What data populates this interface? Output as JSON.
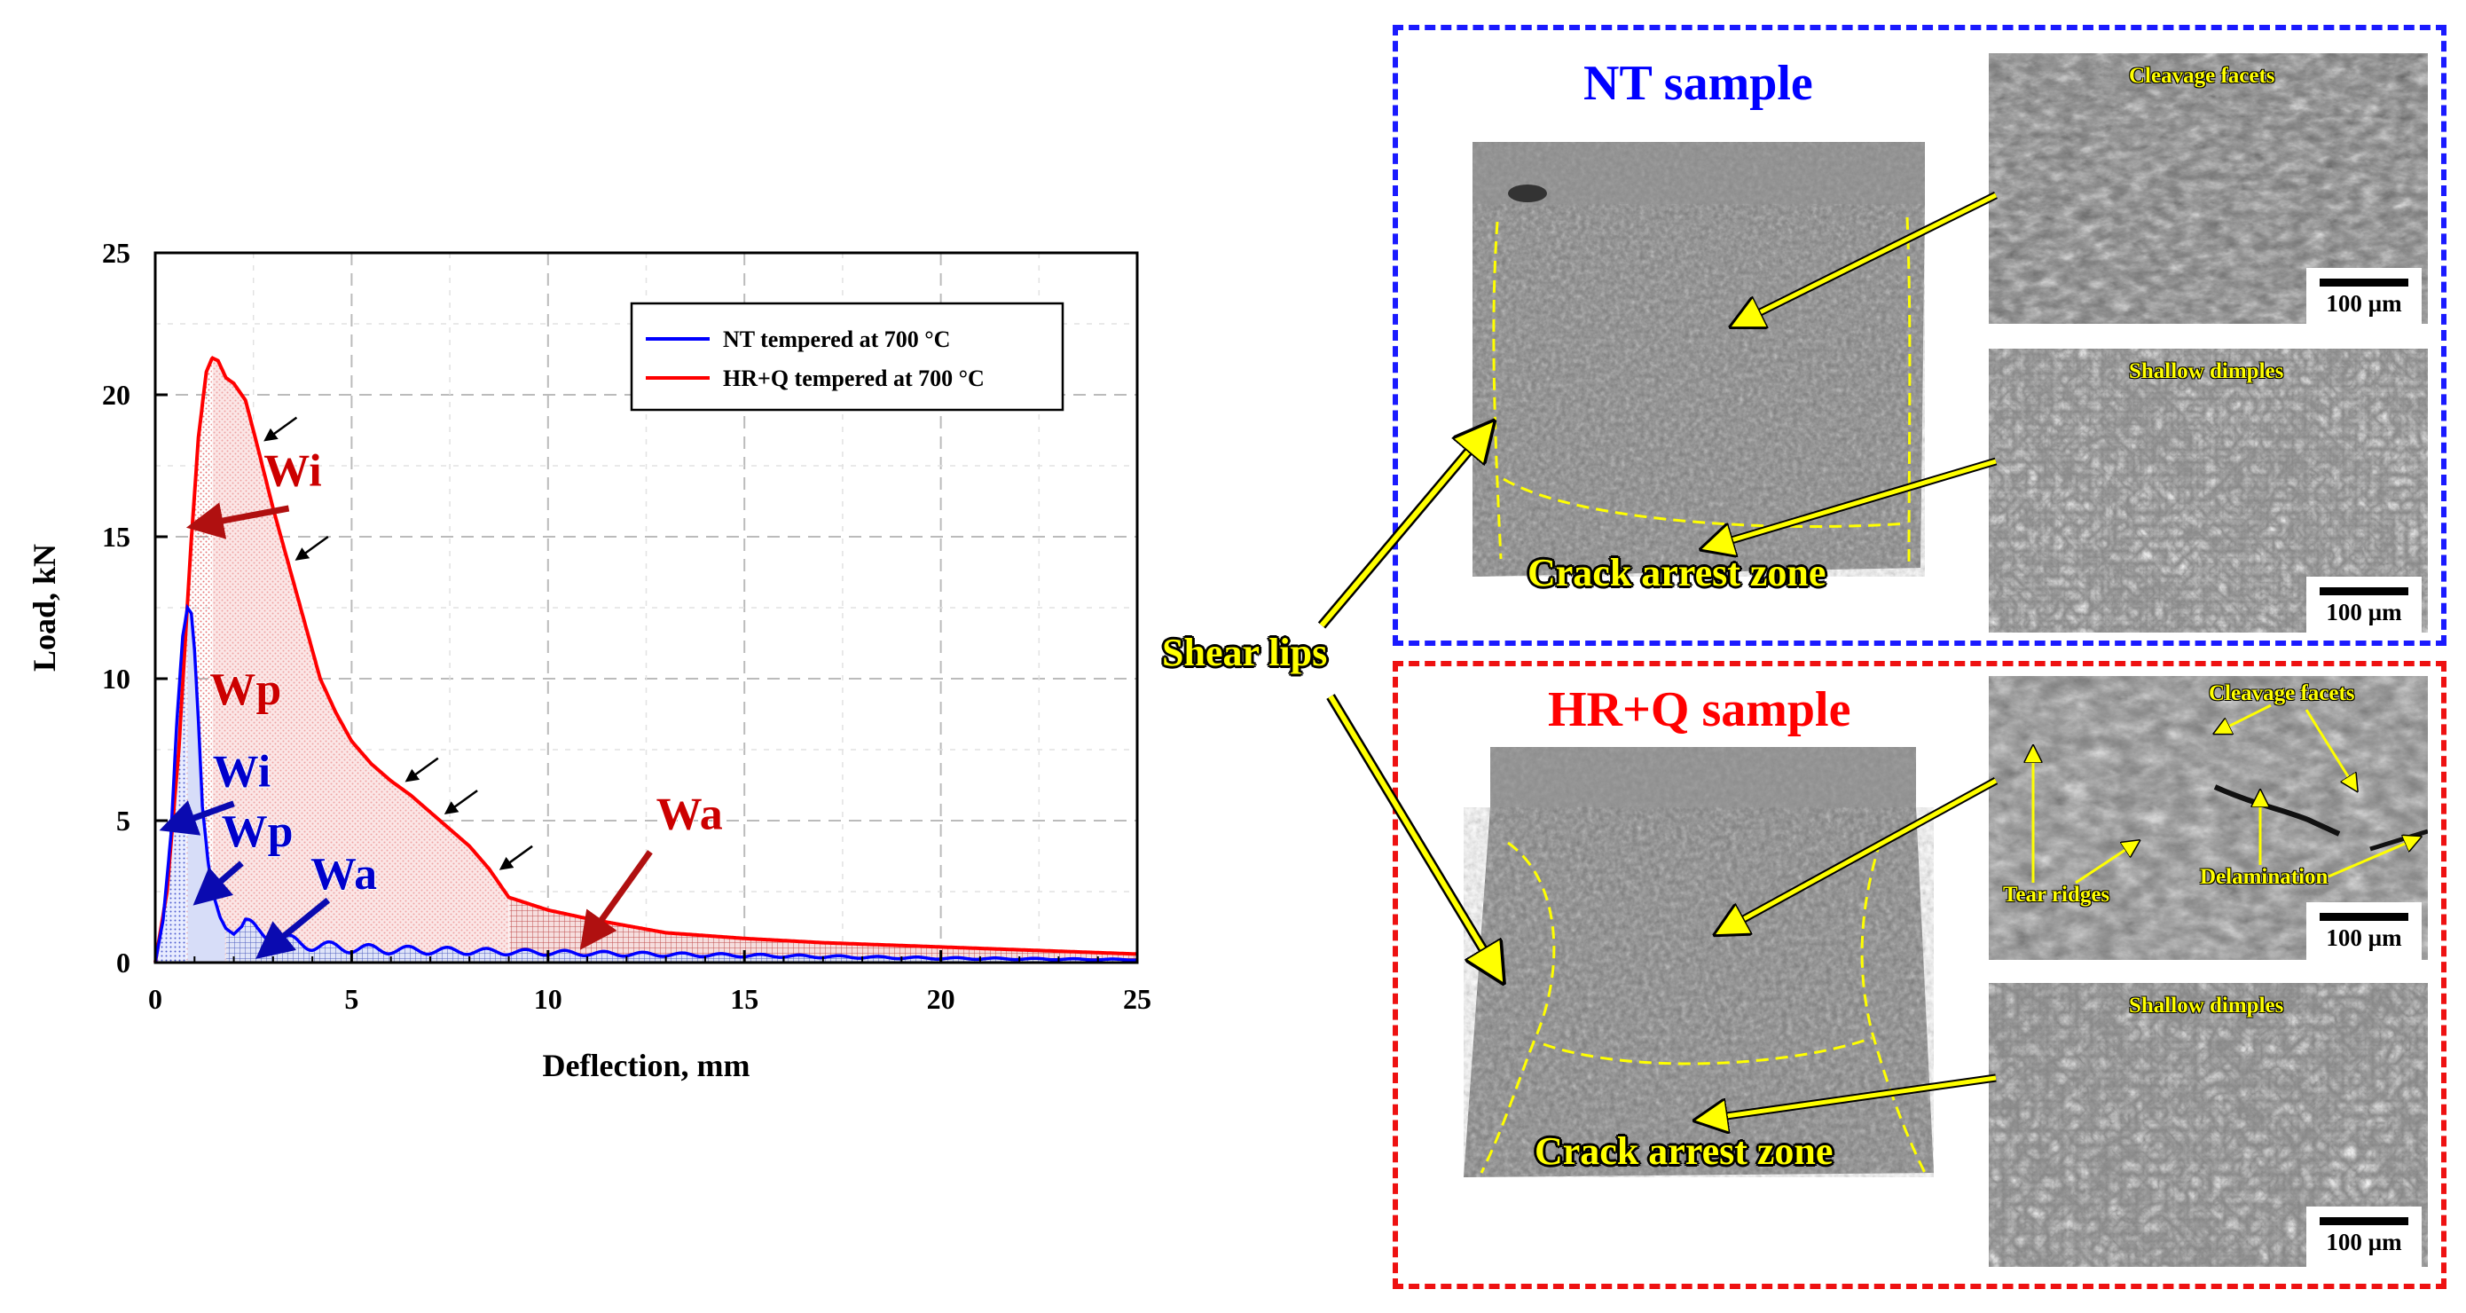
{
  "chart_data": {
    "type": "line",
    "xlabel": "Deflection, mm",
    "ylabel": "Load, kN",
    "xlim": [
      0,
      25
    ],
    "ylim": [
      0,
      25
    ],
    "xticks": [
      "0",
      "5",
      "10",
      "15",
      "20",
      "25"
    ],
    "yticks": [
      "0",
      "5",
      "10",
      "15",
      "20",
      "25"
    ],
    "grid": true,
    "legend_position": "top-right",
    "series": [
      {
        "name": "NT tempered at 700 °C",
        "color": "#0000ff",
        "x": [
          0,
          0.2,
          0.4,
          0.55,
          0.7,
          0.82,
          0.92,
          1.0,
          1.1,
          1.2,
          1.35,
          1.5,
          1.65,
          1.8,
          2.0,
          2.3,
          2.6,
          3.0,
          3.5,
          4.0,
          5.0,
          6.0,
          8.0,
          10.0,
          12.0,
          15.0,
          20.0,
          25.0
        ],
        "y": [
          0,
          1.5,
          4.5,
          8.5,
          11.5,
          12.5,
          12.3,
          11.0,
          8.5,
          5.5,
          3.5,
          2.3,
          1.6,
          1.2,
          1.0,
          1.4,
          1.1,
          0.9,
          0.75,
          0.6,
          0.5,
          0.45,
          0.4,
          0.35,
          0.3,
          0.25,
          0.15,
          0.1
        ]
      },
      {
        "name": "HR+Q tempered at 700 °C",
        "color": "#ff0000",
        "x": [
          0,
          0.3,
          0.6,
          0.9,
          1.1,
          1.3,
          1.45,
          1.6,
          1.8,
          2.0,
          2.3,
          2.6,
          3.0,
          3.4,
          3.8,
          4.2,
          4.6,
          5.0,
          5.5,
          6.0,
          6.5,
          7.0,
          7.5,
          8.0,
          8.5,
          9.0,
          10.0,
          11.0,
          12.0,
          13.0,
          14.0,
          15.0,
          17.0,
          20.0,
          22.0,
          25.0
        ],
        "y": [
          0,
          2.5,
          7.5,
          14.5,
          18.5,
          20.8,
          21.3,
          21.2,
          20.6,
          20.4,
          19.8,
          18.2,
          16.0,
          14.0,
          12.0,
          10.0,
          8.8,
          7.8,
          7.0,
          6.4,
          5.9,
          5.3,
          4.7,
          4.1,
          3.3,
          2.3,
          1.85,
          1.55,
          1.3,
          1.05,
          0.95,
          0.85,
          0.7,
          0.55,
          0.45,
          0.3
        ]
      }
    ],
    "annotations": [
      {
        "text": "Wi",
        "color": "#cc0000",
        "series": "HR+Q tempered at 700 °C"
      },
      {
        "text": "Wp",
        "color": "#cc0000",
        "series": "HR+Q tempered at 700 °C"
      },
      {
        "text": "Wa",
        "color": "#cc0000",
        "series": "HR+Q tempered at 700 °C"
      },
      {
        "text": "Wi",
        "color": "#0000cc",
        "series": "NT tempered at 700 °C"
      },
      {
        "text": "Wp",
        "color": "#0000cc",
        "series": "NT tempered at 700 °C"
      },
      {
        "text": "Wa",
        "color": "#0000cc",
        "series": "NT tempered at 700 °C"
      }
    ],
    "hrq_region_bounds_mm": [
      1.45,
      9.0
    ],
    "nt_region_bounds_mm": [
      0.82,
      1.8
    ],
    "pop_in_arrows_at_mm": [
      2.6,
      3.4,
      6.2,
      7.2,
      8.6
    ]
  },
  "nt_panel": {
    "title": "NT sample",
    "title_color": "#0000ff",
    "frame_color": "#1a1aff",
    "sem_top_label": "Cleavage facets",
    "sem_bottom_label": "Shallow dimples",
    "zone_label": "Crack arrest zone",
    "scale_label": "100 µm"
  },
  "hrq_panel": {
    "title": "HR+Q sample",
    "title_color": "#ff0000",
    "frame_color": "#ee1111",
    "sem_top_labels": [
      "Cleavage facets",
      "Tear ridges",
      "Delamination"
    ],
    "sem_bottom_label": "Shallow dimples",
    "zone_label": "Crack arrest zone",
    "scale_label": "100 µm"
  },
  "shear_lips_label": "Shear lips"
}
